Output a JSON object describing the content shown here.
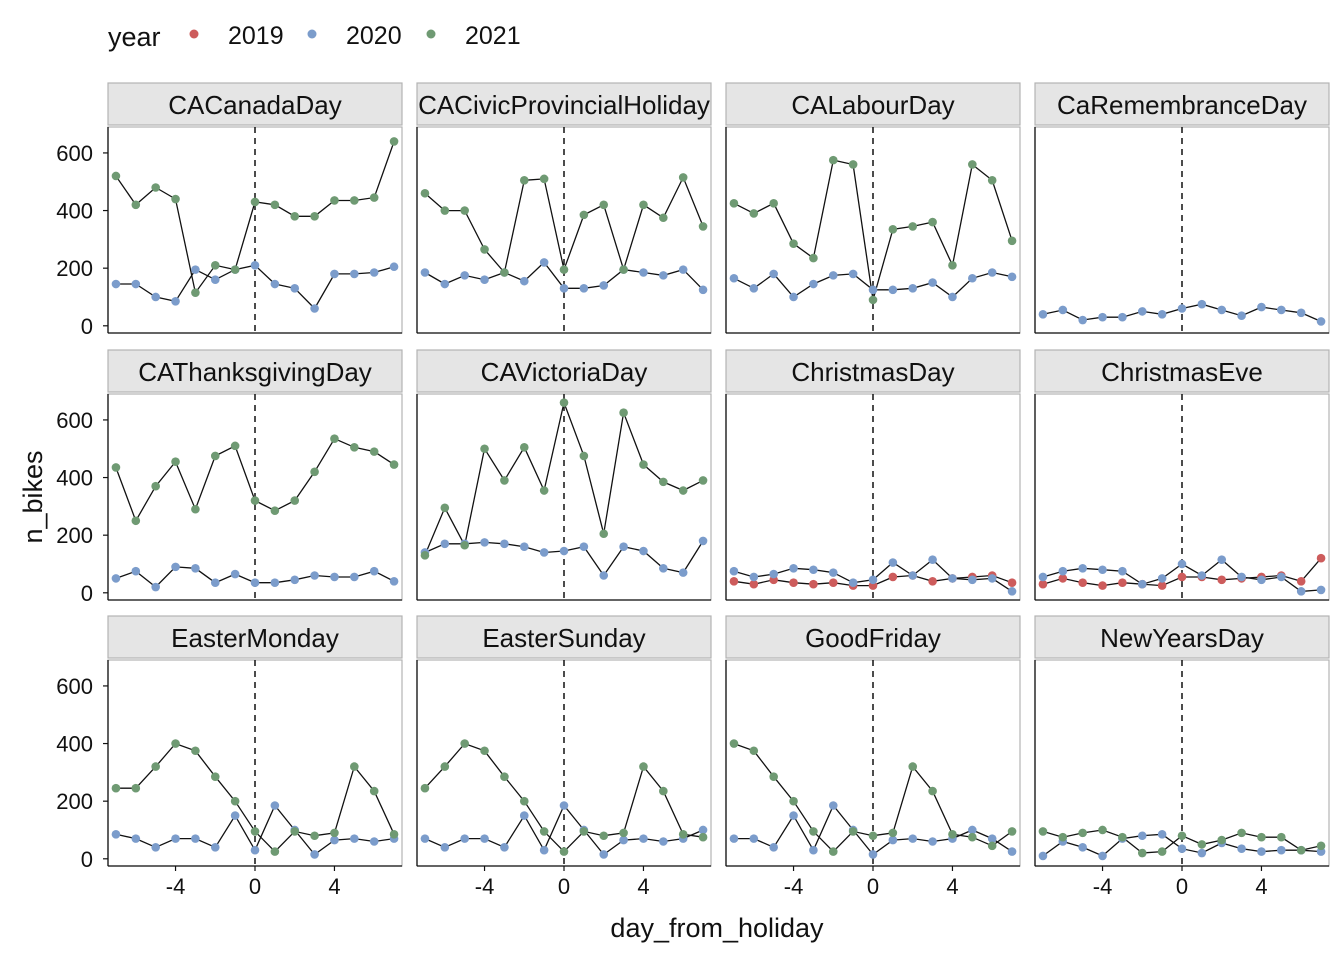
{
  "chart_data": {
    "type": "line",
    "title": "",
    "xlabel": "day_from_holiday",
    "ylabel": "n_bikes",
    "xlim": [
      -7.4,
      7.4
    ],
    "ylim": [
      -25,
      690
    ],
    "x_ticks": [
      -4,
      0,
      4
    ],
    "y_ticks": [
      0,
      200,
      400,
      600
    ],
    "x_tick_labels": [
      "-4",
      "0",
      "4"
    ],
    "y_tick_labels": [
      "0",
      "200",
      "400",
      "600"
    ],
    "reference_line_x": 0,
    "legend": {
      "title": "year",
      "position": "top-left",
      "items": [
        {
          "label": "2019",
          "color": "#cd5c5c"
        },
        {
          "label": "2020",
          "color": "#7b9ccb"
        },
        {
          "label": "2021",
          "color": "#6f9a73"
        }
      ]
    },
    "x": [
      -7,
      -6,
      -5,
      -4,
      -3,
      -2,
      -1,
      0,
      1,
      2,
      3,
      4,
      5,
      6,
      7
    ],
    "panels": [
      {
        "name": "CACanadaDay",
        "series": [
          {
            "year": "2020",
            "values": [
              145,
              145,
              100,
              85,
              195,
              160,
              195,
              210,
              145,
              130,
              60,
              180,
              180,
              185,
              205
            ]
          },
          {
            "year": "2021",
            "values": [
              520,
              420,
              480,
              440,
              115,
              210,
              195,
              430,
              420,
              380,
              380,
              435,
              435,
              445,
              640
            ]
          }
        ]
      },
      {
        "name": "CACivicProvincialHoliday",
        "series": [
          {
            "year": "2020",
            "values": [
              185,
              145,
              175,
              160,
              185,
              155,
              220,
              130,
              130,
              140,
              195,
              185,
              175,
              195,
              125
            ]
          },
          {
            "year": "2021",
            "values": [
              460,
              400,
              400,
              265,
              185,
              505,
              510,
              195,
              385,
              420,
              195,
              420,
              375,
              515,
              345
            ]
          }
        ]
      },
      {
        "name": "CALabourDay",
        "series": [
          {
            "year": "2020",
            "values": [
              165,
              130,
              180,
              100,
              145,
              175,
              180,
              125,
              125,
              130,
              150,
              100,
              165,
              185,
              170
            ]
          },
          {
            "year": "2021",
            "values": [
              425,
              390,
              425,
              285,
              235,
              575,
              560,
              90,
              335,
              345,
              360,
              210,
              560,
              505,
              295
            ]
          }
        ]
      },
      {
        "name": "CaRemembranceDay",
        "series": [
          {
            "year": "2020",
            "values": [
              40,
              55,
              20,
              30,
              30,
              50,
              40,
              60,
              75,
              55,
              35,
              65,
              55,
              45,
              15
            ]
          }
        ]
      },
      {
        "name": "CAThanksgivingDay",
        "series": [
          {
            "year": "2020",
            "values": [
              50,
              75,
              20,
              90,
              85,
              35,
              65,
              35,
              35,
              45,
              60,
              55,
              55,
              75,
              40
            ]
          },
          {
            "year": "2021",
            "values": [
              435,
              250,
              370,
              455,
              290,
              475,
              510,
              320,
              285,
              320,
              420,
              535,
              505,
              490,
              445
            ]
          }
        ]
      },
      {
        "name": "CAVictoriaDay",
        "series": [
          {
            "year": "2020",
            "values": [
              140,
              170,
              170,
              175,
              170,
              160,
              140,
              145,
              160,
              60,
              160,
              145,
              85,
              70,
              180
            ]
          },
          {
            "year": "2021",
            "values": [
              130,
              295,
              165,
              500,
              390,
              505,
              355,
              660,
              475,
              205,
              625,
              445,
              385,
              355,
              390
            ]
          }
        ]
      },
      {
        "name": "ChristmasDay",
        "series": [
          {
            "year": "2019",
            "values": [
              40,
              30,
              45,
              35,
              30,
              35,
              25,
              25,
              55,
              60,
              40,
              50,
              55,
              60,
              35
            ]
          },
          {
            "year": "2020",
            "values": [
              75,
              55,
              65,
              85,
              80,
              70,
              35,
              45,
              105,
              60,
              115,
              50,
              45,
              50,
              5
            ]
          }
        ]
      },
      {
        "name": "ChristmasEve",
        "series": [
          {
            "year": "2019",
            "values": [
              30,
              50,
              35,
              25,
              35,
              30,
              25,
              55,
              55,
              45,
              50,
              55,
              60,
              40,
              120
            ]
          },
          {
            "year": "2020",
            "values": [
              55,
              75,
              85,
              80,
              75,
              30,
              50,
              100,
              60,
              115,
              55,
              45,
              55,
              5,
              10
            ]
          }
        ]
      },
      {
        "name": "EasterMonday",
        "series": [
          {
            "year": "2020",
            "values": [
              85,
              70,
              40,
              70,
              70,
              40,
              150,
              30,
              185,
              100,
              15,
              65,
              70,
              60,
              70
            ]
          },
          {
            "year": "2021",
            "values": [
              245,
              245,
              320,
              400,
              375,
              285,
              200,
              95,
              25,
              95,
              80,
              90,
              320,
              235,
              85
            ]
          }
        ]
      },
      {
        "name": "EasterSunday",
        "series": [
          {
            "year": "2020",
            "values": [
              70,
              40,
              70,
              70,
              40,
              150,
              30,
              185,
              100,
              15,
              65,
              70,
              60,
              70,
              100
            ]
          },
          {
            "year": "2021",
            "values": [
              245,
              320,
              400,
              375,
              285,
              200,
              95,
              25,
              95,
              80,
              90,
              320,
              235,
              85,
              75
            ]
          }
        ]
      },
      {
        "name": "GoodFriday",
        "series": [
          {
            "year": "2020",
            "values": [
              70,
              70,
              40,
              150,
              30,
              185,
              100,
              15,
              65,
              70,
              60,
              70,
              100,
              70,
              25
            ]
          },
          {
            "year": "2021",
            "values": [
              400,
              375,
              285,
              200,
              95,
              25,
              95,
              80,
              90,
              320,
              235,
              85,
              75,
              45,
              95
            ]
          }
        ]
      },
      {
        "name": "NewYearsDay",
        "series": [
          {
            "year": "2020",
            "values": [
              10,
              60,
              40,
              10,
              70,
              80,
              85,
              35,
              20,
              55,
              35,
              25,
              30,
              30,
              25
            ]
          },
          {
            "year": "2021",
            "values": [
              95,
              75,
              90,
              100,
              75,
              20,
              25,
              80,
              50,
              65,
              90,
              75,
              75,
              30,
              45
            ]
          }
        ]
      }
    ]
  }
}
